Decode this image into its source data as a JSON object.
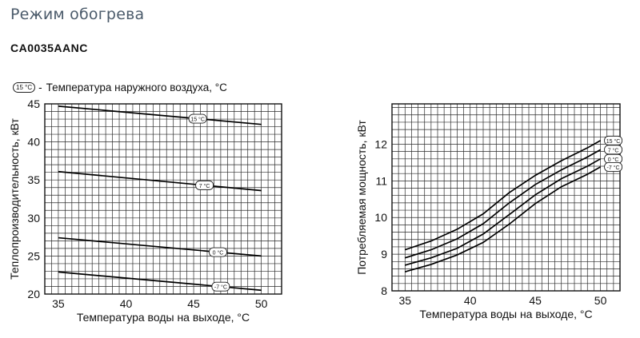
{
  "header": {
    "title": "Режим обогрева",
    "model": "CA0035AANC"
  },
  "legend_note": {
    "badge": "15 °C",
    "dash": "-",
    "text": "Температура наружного воздуха, °C"
  },
  "chart_data": [
    {
      "type": "line",
      "xlabel": "Температура воды на выходе, °C",
      "ylabel": "Теплопроизводительность, кВт",
      "xlim": [
        34,
        51.5
      ],
      "ylim": [
        20,
        45
      ],
      "xticks": [
        35,
        40,
        45,
        50
      ],
      "yticks": [
        20,
        25,
        30,
        35,
        40,
        45
      ],
      "grid": true,
      "series": [
        {
          "name": "15 °C",
          "x": [
            35,
            50
          ],
          "y": [
            44.7,
            42.3
          ]
        },
        {
          "name": "7 °C",
          "x": [
            35,
            50
          ],
          "y": [
            36.1,
            33.6
          ]
        },
        {
          "name": "0 °C",
          "x": [
            35,
            50
          ],
          "y": [
            27.4,
            25.0
          ]
        },
        {
          "name": "-7 °C",
          "x": [
            35,
            50
          ],
          "y": [
            22.9,
            20.5
          ]
        }
      ],
      "labels": [
        {
          "text": "15 °C",
          "series": 0,
          "x": 45.3
        },
        {
          "text": "7 °C",
          "series": 1,
          "x": 45.8
        },
        {
          "text": "0 °C",
          "series": 2,
          "x": 46.8
        },
        {
          "text": "-7 °C",
          "series": 3,
          "x": 47.0
        }
      ]
    },
    {
      "type": "line",
      "xlabel": "Температура воды на выходе, °C",
      "ylabel": "Потребляемая мощность, кВт",
      "xlim": [
        34,
        51.5
      ],
      "ylim": [
        8,
        13.1
      ],
      "xticks": [
        35,
        40,
        45,
        50
      ],
      "yticks": [
        8,
        9,
        10,
        11,
        12
      ],
      "grid": true,
      "series": [
        {
          "name": "15 °C",
          "x": [
            35,
            37,
            39,
            41,
            43,
            45,
            47,
            49,
            50
          ],
          "y": [
            9.12,
            9.36,
            9.68,
            10.1,
            10.68,
            11.15,
            11.55,
            11.9,
            12.1
          ]
        },
        {
          "name": "7 °C",
          "x": [
            35,
            37,
            39,
            41,
            43,
            45,
            47,
            49,
            50
          ],
          "y": [
            8.9,
            9.12,
            9.42,
            9.83,
            10.4,
            10.9,
            11.3,
            11.65,
            11.85
          ]
        },
        {
          "name": "0 °C",
          "x": [
            35,
            37,
            39,
            41,
            43,
            45,
            47,
            49,
            50
          ],
          "y": [
            8.7,
            8.9,
            9.16,
            9.55,
            10.08,
            10.62,
            11.06,
            11.4,
            11.6
          ]
        },
        {
          "name": "-7 °C",
          "x": [
            35,
            37,
            39,
            41,
            43,
            45,
            47,
            49,
            50
          ],
          "y": [
            8.52,
            8.72,
            8.98,
            9.32,
            9.82,
            10.38,
            10.84,
            11.18,
            11.38
          ]
        }
      ],
      "labels": [
        {
          "text": "15 °C",
          "series": 0
        },
        {
          "text": "7 °C",
          "series": 1
        },
        {
          "text": "0 °C",
          "series": 2
        },
        {
          "text": "-7 °C",
          "series": 3
        }
      ]
    }
  ]
}
